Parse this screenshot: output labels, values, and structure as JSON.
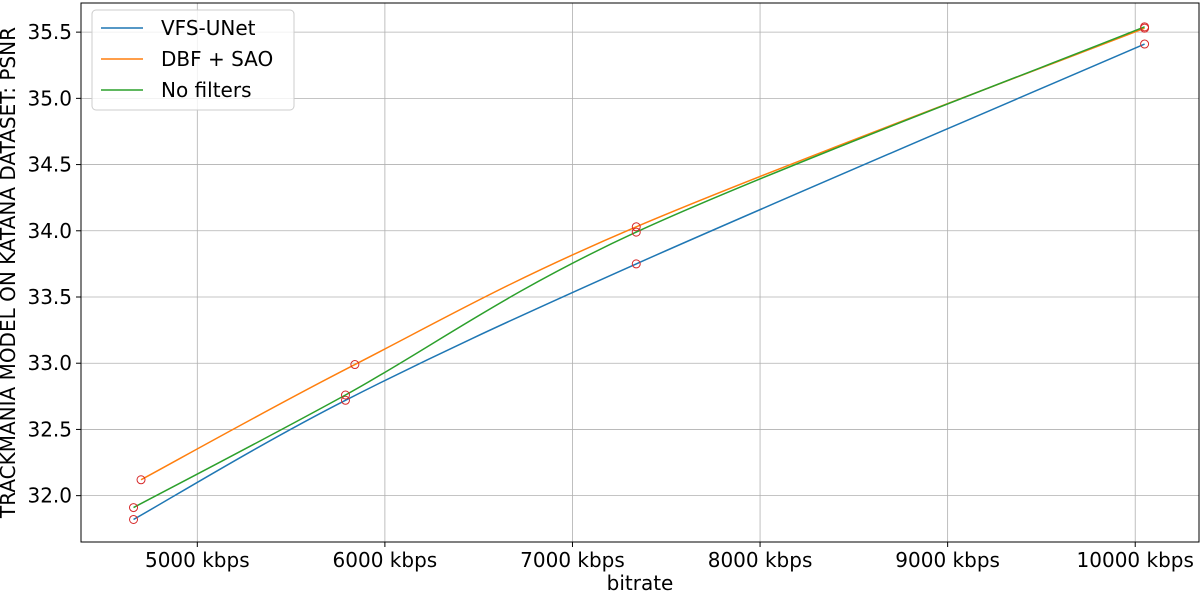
{
  "chart_data": {
    "type": "line",
    "xlabel": "bitrate",
    "ylabel": "TRACKMANIA MODEL ON KATANA DATASET: PSNR",
    "xlim": [
      4380,
      10340
    ],
    "ylim": [
      31.65,
      35.72
    ],
    "x_ticks": [
      5000,
      6000,
      7000,
      8000,
      9000,
      10000
    ],
    "x_tick_labels": [
      "5000 kbps",
      "6000 kbps",
      "7000 kbps",
      "8000 kbps",
      "9000 kbps",
      "10000 kbps"
    ],
    "y_ticks": [
      32.0,
      32.5,
      33.0,
      33.5,
      34.0,
      34.5,
      35.0,
      35.5
    ],
    "y_tick_labels": [
      "32.0",
      "32.5",
      "33.0",
      "33.5",
      "34.0",
      "34.5",
      "35.0",
      "35.5"
    ],
    "grid": true,
    "legend_position": "top-left",
    "marker_color": "#d62728",
    "series": [
      {
        "name": "VFS-UNet",
        "color": "#1f77b4",
        "x": [
          4660,
          5790,
          7340,
          10050
        ],
        "y": [
          31.82,
          32.72,
          33.75,
          35.41
        ]
      },
      {
        "name": "DBF + SAO",
        "color": "#ff7f0e",
        "x": [
          4700,
          5840,
          7340,
          10050
        ],
        "y": [
          32.12,
          32.99,
          34.03,
          35.53
        ]
      },
      {
        "name": "No filters",
        "color": "#2ca02c",
        "x": [
          4660,
          5790,
          7340,
          10050
        ],
        "y": [
          31.91,
          32.76,
          33.99,
          35.54
        ]
      }
    ]
  }
}
